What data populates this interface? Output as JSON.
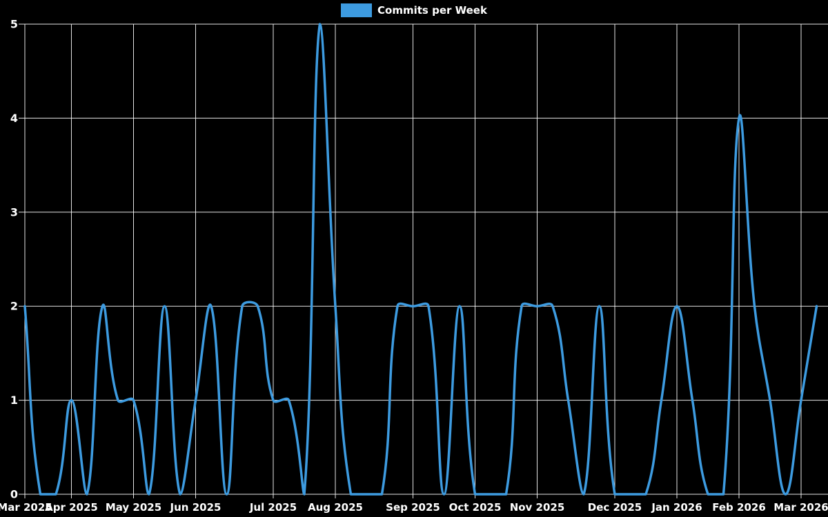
{
  "legend": {
    "label": "Commits per Week"
  },
  "chart_data": {
    "type": "line",
    "title": "",
    "series": [
      {
        "name": "Commits per Week",
        "values": [
          2,
          0,
          0,
          1,
          0,
          2,
          1,
          1,
          0,
          2,
          0,
          1,
          2,
          0,
          2,
          2,
          1,
          1,
          0,
          5,
          2,
          0,
          0,
          0,
          2,
          2,
          2,
          0,
          2,
          0,
          0,
          0,
          2,
          2,
          2,
          1,
          0,
          2,
          0,
          0,
          0,
          1,
          2,
          1,
          0,
          0,
          4,
          2,
          1,
          0,
          1,
          2
        ]
      }
    ],
    "x_unit": "week",
    "week_count": 52,
    "x_tick_labels": [
      "Mar 2025",
      "Apr 2025",
      "May 2025",
      "Jun 2025",
      "Jul 2025",
      "Aug 2025",
      "Sep 2025",
      "Oct 2025",
      "Nov 2025",
      "Dec 2025",
      "Jan 2026",
      "Feb 2026",
      "Mar 2026"
    ],
    "x_tick_week_indices": [
      0,
      3,
      7,
      11,
      16,
      20,
      25,
      29,
      33,
      38,
      42,
      46,
      50
    ],
    "y_ticks": [
      0,
      1,
      2,
      3,
      4,
      5
    ],
    "ylim": [
      0,
      5
    ],
    "grid": true,
    "legend_position": "top-center",
    "colors": {
      "line": "#3d9be0",
      "legend_box": "#3d9be0",
      "background": "#000000",
      "grid": "#ffffff",
      "text": "#ffffff"
    }
  }
}
